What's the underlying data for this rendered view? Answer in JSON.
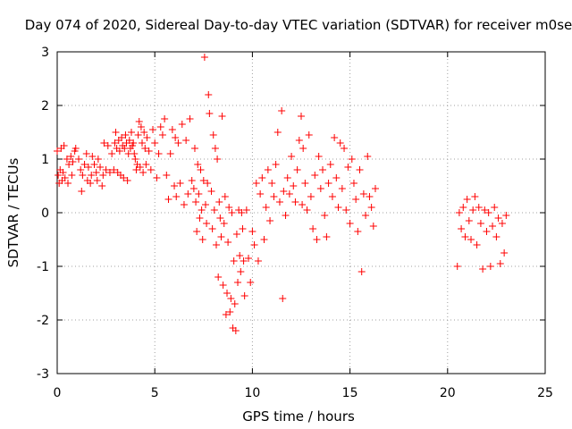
{
  "chart_data": {
    "type": "scatter",
    "title": "Day 074 of 2020, Sidereal Day-to-day VTEC variation (SDTVAR) for receiver m0se",
    "xlabel": "GPS time / hours",
    "ylabel": "SDTVAR / TECUs",
    "xlim": [
      0,
      25
    ],
    "ylim": [
      -3,
      3
    ],
    "xticks": [
      0,
      5,
      10,
      15,
      20,
      25
    ],
    "yticks": [
      -3,
      -2,
      -1,
      0,
      1,
      2,
      3
    ],
    "grid": true,
    "marker": "+",
    "colors": {
      "points": "#ff0000",
      "grid": "#a0a0a0",
      "axes": "#000000"
    },
    "series": [
      {
        "name": "SDTVAR",
        "points": [
          [
            0.0,
            1.15
          ],
          [
            0.05,
            0.7
          ],
          [
            0.1,
            0.55
          ],
          [
            0.15,
            0.8
          ],
          [
            0.2,
            1.2
          ],
          [
            0.25,
            0.6
          ],
          [
            0.3,
            0.75
          ],
          [
            0.35,
            1.25
          ],
          [
            0.4,
            0.65
          ],
          [
            0.5,
            1.0
          ],
          [
            0.55,
            0.55
          ],
          [
            0.6,
            0.9
          ],
          [
            0.7,
            1.05
          ],
          [
            0.75,
            0.7
          ],
          [
            0.8,
            0.95
          ],
          [
            0.9,
            1.15
          ],
          [
            0.95,
            1.2
          ],
          [
            1.1,
            1.0
          ],
          [
            1.2,
            0.8
          ],
          [
            1.25,
            0.4
          ],
          [
            1.3,
            0.7
          ],
          [
            1.4,
            0.9
          ],
          [
            1.5,
            1.1
          ],
          [
            1.55,
            0.6
          ],
          [
            1.6,
            0.85
          ],
          [
            1.7,
            0.55
          ],
          [
            1.75,
            0.7
          ],
          [
            1.8,
            1.05
          ],
          [
            1.9,
            0.9
          ],
          [
            2.0,
            0.75
          ],
          [
            2.05,
            0.6
          ],
          [
            2.1,
            1.0
          ],
          [
            2.2,
            0.85
          ],
          [
            2.3,
            0.5
          ],
          [
            2.35,
            0.7
          ],
          [
            2.4,
            1.3
          ],
          [
            2.5,
            0.8
          ],
          [
            2.6,
            1.25
          ],
          [
            2.7,
            0.75
          ],
          [
            2.8,
            1.1
          ],
          [
            2.9,
            0.8
          ],
          [
            2.95,
            1.3
          ],
          [
            3.0,
            1.5
          ],
          [
            3.05,
            1.2
          ],
          [
            3.1,
            0.75
          ],
          [
            3.15,
            1.35
          ],
          [
            3.2,
            1.15
          ],
          [
            3.25,
            0.7
          ],
          [
            3.3,
            1.4
          ],
          [
            3.35,
            1.25
          ],
          [
            3.4,
            0.65
          ],
          [
            3.45,
            1.2
          ],
          [
            3.5,
            1.45
          ],
          [
            3.55,
            1.3
          ],
          [
            3.6,
            0.6
          ],
          [
            3.65,
            1.1
          ],
          [
            3.7,
            1.35
          ],
          [
            3.75,
            1.2
          ],
          [
            3.8,
            1.5
          ],
          [
            3.85,
            1.25
          ],
          [
            3.9,
            1.3
          ],
          [
            3.95,
            1.1
          ],
          [
            4.0,
            1.0
          ],
          [
            4.05,
            0.8
          ],
          [
            4.1,
            0.9
          ],
          [
            4.15,
            1.45
          ],
          [
            4.2,
            1.7
          ],
          [
            4.25,
            0.85
          ],
          [
            4.3,
            1.6
          ],
          [
            4.35,
            1.3
          ],
          [
            4.4,
            0.75
          ],
          [
            4.45,
            1.5
          ],
          [
            4.5,
            1.2
          ],
          [
            4.55,
            0.9
          ],
          [
            4.6,
            1.4
          ],
          [
            4.7,
            1.15
          ],
          [
            4.8,
            0.8
          ],
          [
            4.9,
            1.55
          ],
          [
            5.0,
            1.3
          ],
          [
            5.1,
            0.65
          ],
          [
            5.2,
            1.1
          ],
          [
            5.3,
            1.6
          ],
          [
            5.4,
            1.45
          ],
          [
            5.5,
            1.75
          ],
          [
            5.6,
            0.7
          ],
          [
            5.7,
            0.25
          ],
          [
            5.8,
            1.1
          ],
          [
            5.9,
            1.55
          ],
          [
            6.0,
            0.5
          ],
          [
            6.05,
            1.4
          ],
          [
            6.1,
            0.3
          ],
          [
            6.2,
            1.3
          ],
          [
            6.3,
            0.55
          ],
          [
            6.4,
            1.65
          ],
          [
            6.5,
            0.15
          ],
          [
            6.6,
            1.35
          ],
          [
            6.7,
            0.35
          ],
          [
            6.8,
            1.75
          ],
          [
            6.9,
            0.6
          ],
          [
            7.0,
            0.45
          ],
          [
            7.05,
            1.2
          ],
          [
            7.1,
            0.2
          ],
          [
            7.15,
            -0.35
          ],
          [
            7.2,
            0.9
          ],
          [
            7.25,
            0.35
          ],
          [
            7.3,
            -0.1
          ],
          [
            7.35,
            0.8
          ],
          [
            7.4,
            0.05
          ],
          [
            7.45,
            -0.5
          ],
          [
            7.5,
            0.6
          ],
          [
            7.55,
            2.9
          ],
          [
            7.6,
            0.15
          ],
          [
            7.65,
            -0.2
          ],
          [
            7.7,
            0.55
          ],
          [
            7.75,
            2.2
          ],
          [
            7.8,
            1.85
          ],
          [
            7.9,
            0.4
          ],
          [
            7.95,
            -0.3
          ],
          [
            8.0,
            1.45
          ],
          [
            8.05,
            0.05
          ],
          [
            8.1,
            1.2
          ],
          [
            8.15,
            -0.6
          ],
          [
            8.2,
            1.0
          ],
          [
            8.25,
            -1.2
          ],
          [
            8.3,
            0.2
          ],
          [
            8.35,
            -0.1
          ],
          [
            8.4,
            -0.45
          ],
          [
            8.45,
            1.8
          ],
          [
            8.5,
            -1.35
          ],
          [
            8.55,
            -0.2
          ],
          [
            8.6,
            0.3
          ],
          [
            8.65,
            -1.9
          ],
          [
            8.7,
            -1.5
          ],
          [
            8.75,
            -0.55
          ],
          [
            8.8,
            0.1
          ],
          [
            8.85,
            -1.85
          ],
          [
            8.9,
            -1.6
          ],
          [
            8.95,
            0.0
          ],
          [
            9.0,
            -2.15
          ],
          [
            9.05,
            -0.9
          ],
          [
            9.1,
            -1.7
          ],
          [
            9.15,
            -2.2
          ],
          [
            9.2,
            -0.4
          ],
          [
            9.25,
            -1.3
          ],
          [
            9.3,
            0.05
          ],
          [
            9.35,
            -0.8
          ],
          [
            9.4,
            -1.1
          ],
          [
            9.45,
            0.0
          ],
          [
            9.5,
            -0.3
          ],
          [
            9.55,
            -0.9
          ],
          [
            9.6,
            -1.55
          ],
          [
            9.7,
            0.05
          ],
          [
            9.8,
            -0.85
          ],
          [
            9.9,
            -1.3
          ],
          [
            10.0,
            -0.35
          ],
          [
            10.1,
            -0.6
          ],
          [
            10.2,
            0.55
          ],
          [
            10.3,
            -0.9
          ],
          [
            10.4,
            0.35
          ],
          [
            10.5,
            0.65
          ],
          [
            10.6,
            -0.5
          ],
          [
            10.7,
            0.1
          ],
          [
            10.8,
            0.8
          ],
          [
            10.9,
            -0.15
          ],
          [
            11.0,
            0.55
          ],
          [
            11.1,
            0.3
          ],
          [
            11.2,
            0.9
          ],
          [
            11.3,
            1.5
          ],
          [
            11.4,
            0.2
          ],
          [
            11.5,
            1.9
          ],
          [
            11.55,
            -1.6
          ],
          [
            11.6,
            0.4
          ],
          [
            11.7,
            -0.05
          ],
          [
            11.8,
            0.65
          ],
          [
            11.9,
            0.35
          ],
          [
            12.0,
            1.05
          ],
          [
            12.1,
            0.5
          ],
          [
            12.2,
            0.2
          ],
          [
            12.3,
            0.8
          ],
          [
            12.4,
            1.35
          ],
          [
            12.5,
            1.8
          ],
          [
            12.55,
            0.15
          ],
          [
            12.6,
            1.2
          ],
          [
            12.7,
            0.55
          ],
          [
            12.8,
            0.05
          ],
          [
            12.9,
            1.45
          ],
          [
            13.0,
            0.3
          ],
          [
            13.1,
            -0.3
          ],
          [
            13.2,
            0.7
          ],
          [
            13.3,
            -0.5
          ],
          [
            13.4,
            1.05
          ],
          [
            13.5,
            0.45
          ],
          [
            13.6,
            0.8
          ],
          [
            13.7,
            -0.05
          ],
          [
            13.8,
            -0.45
          ],
          [
            13.9,
            0.55
          ],
          [
            14.0,
            0.9
          ],
          [
            14.1,
            0.3
          ],
          [
            14.2,
            1.4
          ],
          [
            14.3,
            0.65
          ],
          [
            14.4,
            0.1
          ],
          [
            14.5,
            1.3
          ],
          [
            14.6,
            0.45
          ],
          [
            14.7,
            1.2
          ],
          [
            14.8,
            0.05
          ],
          [
            14.9,
            0.85
          ],
          [
            15.0,
            -0.2
          ],
          [
            15.1,
            1.0
          ],
          [
            15.2,
            0.55
          ],
          [
            15.3,
            0.25
          ],
          [
            15.4,
            -0.35
          ],
          [
            15.5,
            0.8
          ],
          [
            15.6,
            -1.1
          ],
          [
            15.7,
            0.35
          ],
          [
            15.8,
            -0.05
          ],
          [
            15.9,
            1.05
          ],
          [
            16.0,
            0.3
          ],
          [
            16.1,
            0.1
          ],
          [
            16.2,
            -0.25
          ],
          [
            16.3,
            0.45
          ],
          [
            20.5,
            -1.0
          ],
          [
            20.6,
            0.0
          ],
          [
            20.7,
            -0.3
          ],
          [
            20.8,
            0.1
          ],
          [
            20.9,
            -0.45
          ],
          [
            21.0,
            0.25
          ],
          [
            21.1,
            -0.15
          ],
          [
            21.2,
            -0.5
          ],
          [
            21.3,
            0.05
          ],
          [
            21.4,
            0.3
          ],
          [
            21.5,
            -0.6
          ],
          [
            21.6,
            0.1
          ],
          [
            21.7,
            -0.2
          ],
          [
            21.8,
            -1.05
          ],
          [
            21.9,
            0.05
          ],
          [
            22.0,
            -0.35
          ],
          [
            22.1,
            0.0
          ],
          [
            22.2,
            -1.0
          ],
          [
            22.3,
            -0.25
          ],
          [
            22.4,
            0.1
          ],
          [
            22.5,
            -0.45
          ],
          [
            22.6,
            -0.1
          ],
          [
            22.7,
            -0.95
          ],
          [
            22.8,
            -0.2
          ],
          [
            22.9,
            -0.75
          ],
          [
            23.0,
            -0.05
          ]
        ]
      }
    ]
  }
}
